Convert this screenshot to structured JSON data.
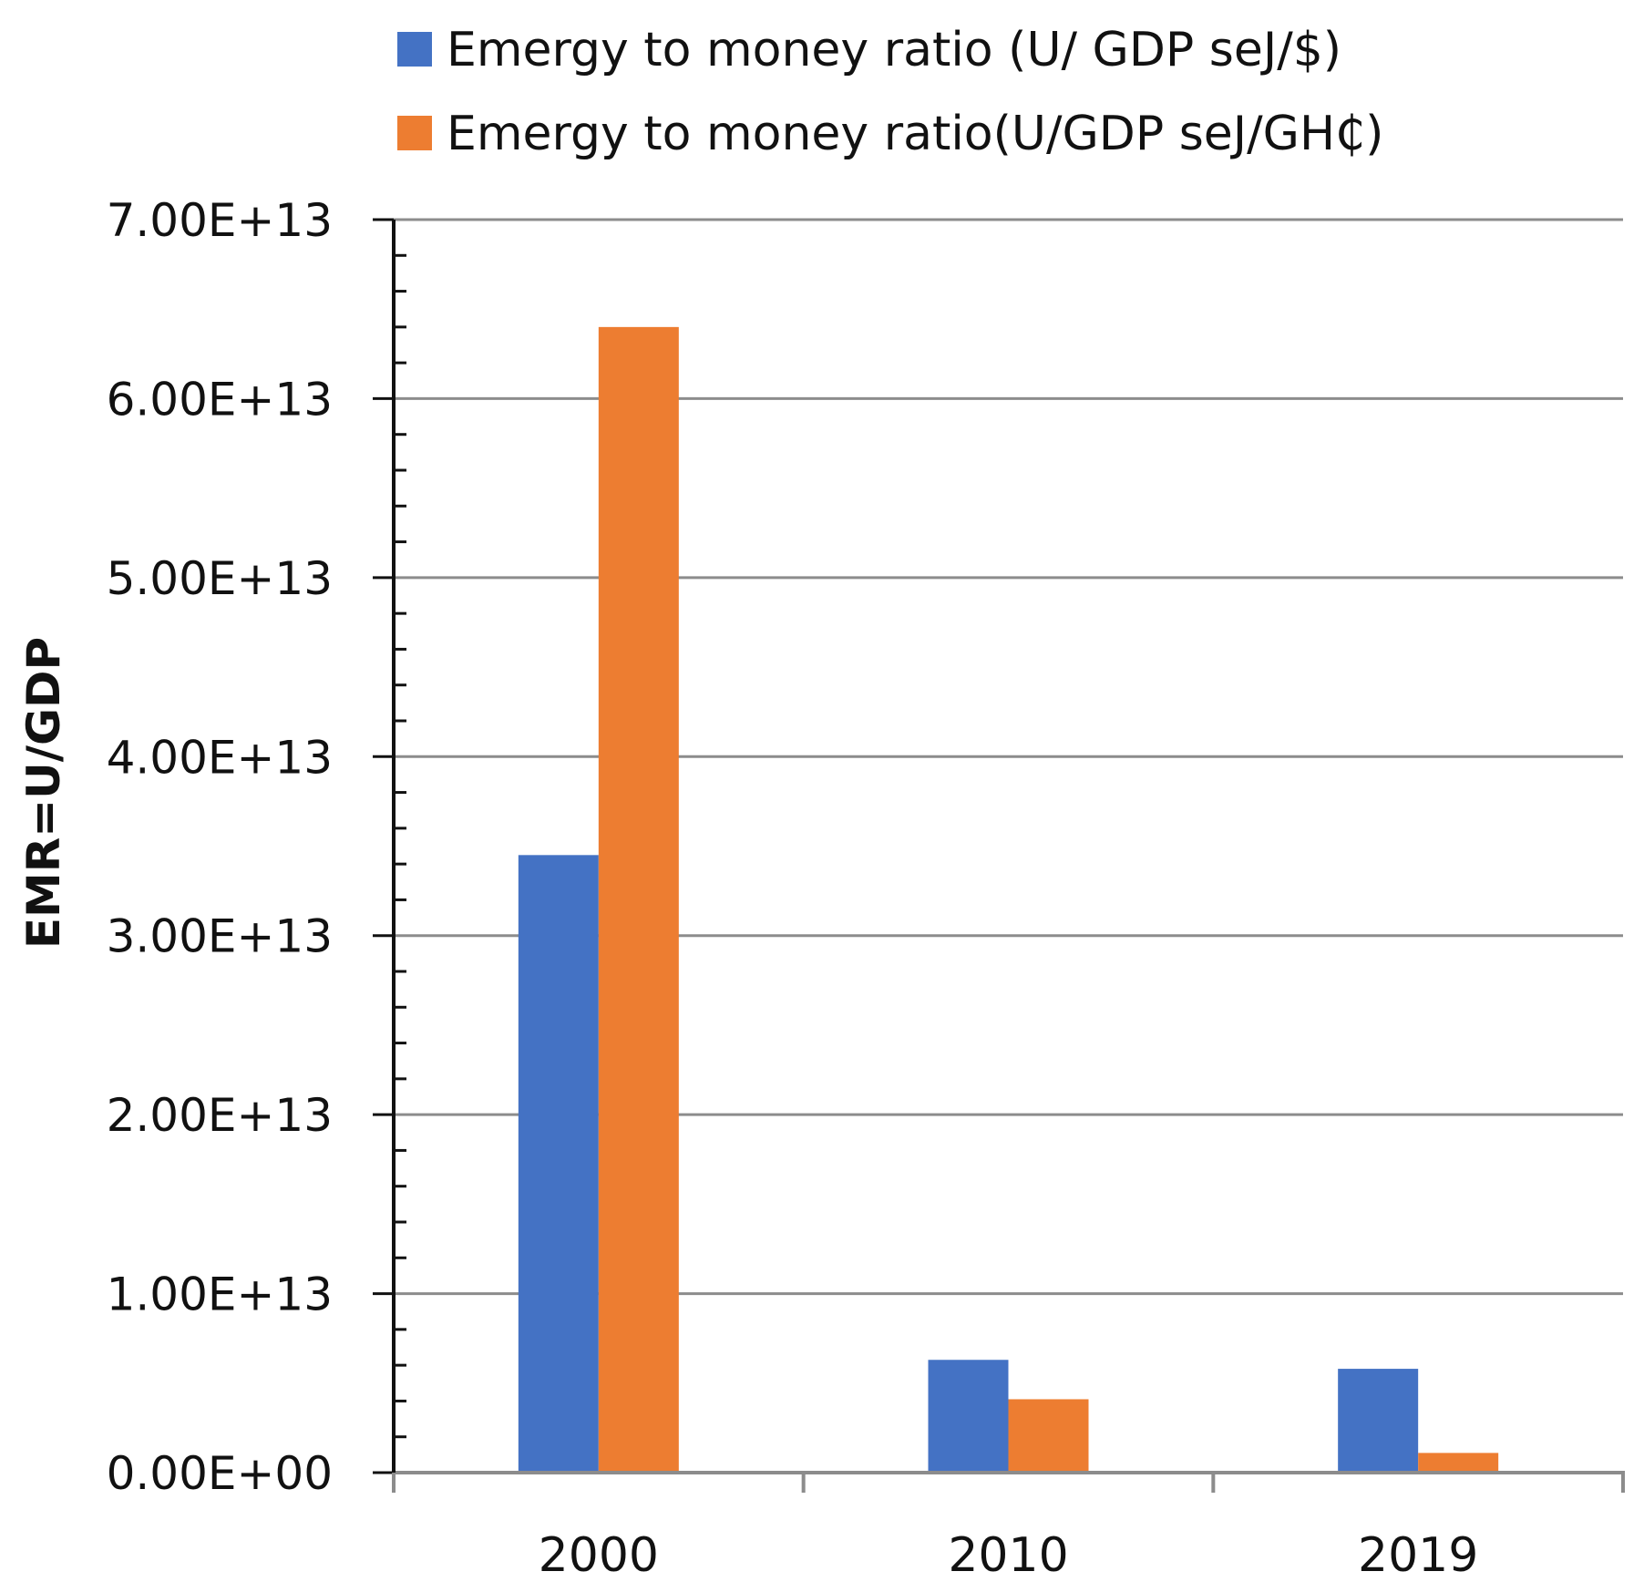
{
  "chart_data": {
    "type": "bar",
    "title": "",
    "xlabel": "",
    "ylabel": "EMR=U/GDP",
    "categories": [
      "2000",
      "2010",
      "2019"
    ],
    "series": [
      {
        "name": "Emergy to money ratio (U/ GDP seJ/$)",
        "color": "#4472C4",
        "values": [
          34500000000000.0,
          6300000000000.0,
          5800000000000.0
        ]
      },
      {
        "name": "Emergy to money ratio(U/GDP seJ/GH₵)",
        "color": "#ED7D31",
        "values": [
          64000000000000.0,
          4100000000000.0,
          1100000000000.0
        ]
      }
    ],
    "ylim": [
      0,
      70000000000000.0
    ],
    "yticks": [
      {
        "value": 0,
        "label": "0.00E+00"
      },
      {
        "value": 10000000000000.0,
        "label": "1.00E+13"
      },
      {
        "value": 20000000000000.0,
        "label": "2.00E+13"
      },
      {
        "value": 30000000000000.0,
        "label": "3.00E+13"
      },
      {
        "value": 40000000000000.0,
        "label": "4.00E+13"
      },
      {
        "value": 50000000000000.0,
        "label": "5.00E+13"
      },
      {
        "value": 60000000000000.0,
        "label": "6.00E+13"
      },
      {
        "value": 70000000000000.0,
        "label": "7.00E+13"
      }
    ],
    "grid": true,
    "legend_position": "top"
  }
}
